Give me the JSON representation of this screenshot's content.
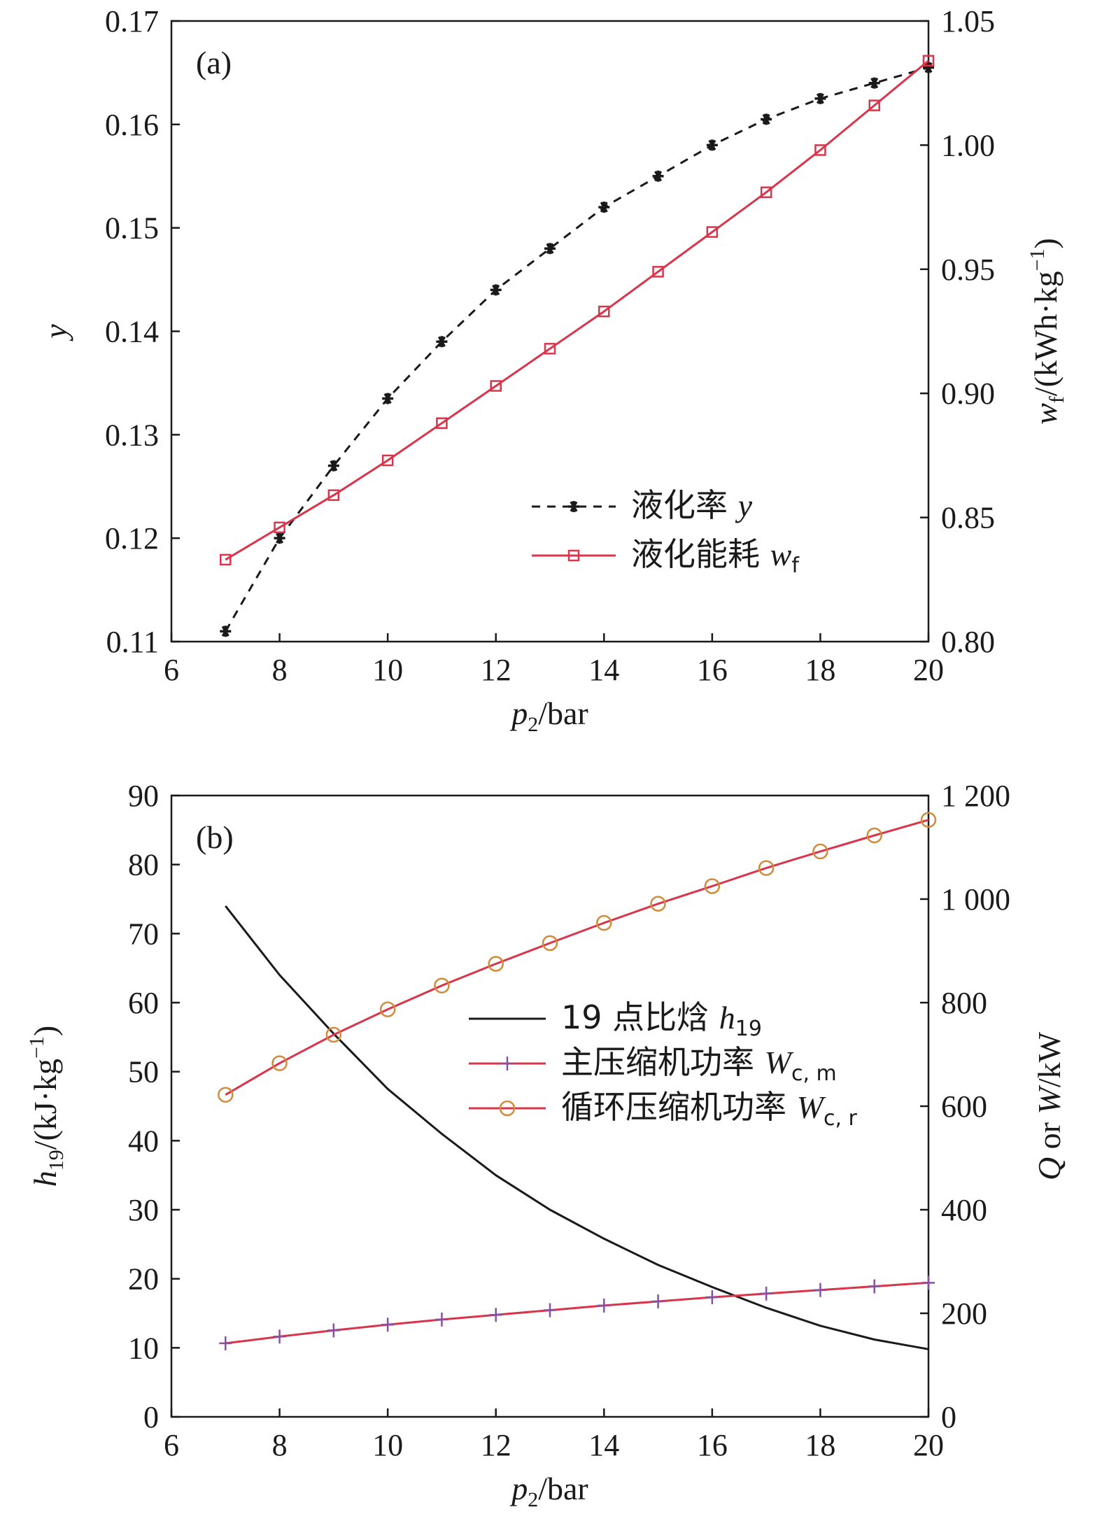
{
  "colors": {
    "axis": "#1a1a1a",
    "liquefaction": "#1a1a1a",
    "energy": "#d9344a",
    "h19": "#1a1a1a",
    "wcm_line": "#d9344a",
    "wcm_marker": "#8a4fa0",
    "wcr_line": "#d9344a",
    "wcr_marker": "#d08a3a"
  },
  "chart_data": [
    {
      "type": "line",
      "panel_label": "(a)",
      "xlabel": {
        "var": "p",
        "sub": "2",
        "unit": "/bar"
      },
      "ylabel_left": {
        "var": "y"
      },
      "ylabel_right": {
        "var": "w",
        "sub": "f",
        "unit": "/(kWh·kg",
        "sup": "−1",
        "close": ")"
      },
      "xlim": [
        6,
        20
      ],
      "xticks": [
        "6",
        "8",
        "10",
        "12",
        "14",
        "16",
        "18",
        "20"
      ],
      "ylim_left": [
        0.11,
        0.17
      ],
      "yticks_left": [
        "0.11",
        "0.12",
        "0.13",
        "0.14",
        "0.15",
        "0.16",
        "0.17"
      ],
      "ylim_right": [
        0.8,
        1.05
      ],
      "yticks_right": [
        "0.80",
        "0.85",
        "0.90",
        "0.95",
        "1.00",
        "1.05"
      ],
      "x": [
        7,
        8,
        9,
        10,
        11,
        12,
        13,
        14,
        15,
        16,
        17,
        18,
        19,
        20
      ],
      "legend_position": "lower-right",
      "series": [
        {
          "name": "液化率",
          "var": "y",
          "sub": "",
          "axis": "left",
          "style": "dashed",
          "marker": "asterisk",
          "values": [
            0.111,
            0.12,
            0.127,
            0.1335,
            0.139,
            0.144,
            0.148,
            0.152,
            0.155,
            0.158,
            0.1605,
            0.1625,
            0.164,
            0.1655
          ]
        },
        {
          "name": "液化能耗",
          "var": "w",
          "sub": "f",
          "axis": "right",
          "style": "solid",
          "marker": "square",
          "values": [
            0.833,
            0.846,
            0.859,
            0.873,
            0.888,
            0.903,
            0.918,
            0.933,
            0.949,
            0.965,
            0.981,
            0.998,
            1.016,
            1.034
          ]
        }
      ]
    },
    {
      "type": "line",
      "panel_label": "(b)",
      "xlabel": {
        "var": "p",
        "sub": "2",
        "unit": "/bar"
      },
      "ylabel_left": {
        "var": "h",
        "sub": "19",
        "unit": "/(kJ·kg",
        "sup": "−1",
        "close": ")"
      },
      "ylabel_right": {
        "var": "Q",
        "mid": " or ",
        "var2": "W",
        "unit": "/kW"
      },
      "xlim": [
        6,
        20
      ],
      "xticks": [
        "6",
        "8",
        "10",
        "12",
        "14",
        "16",
        "18",
        "20"
      ],
      "ylim_left": [
        0,
        90
      ],
      "yticks_left": [
        "0",
        "10",
        "20",
        "30",
        "40",
        "50",
        "60",
        "70",
        "80",
        "90"
      ],
      "ylim_right": [
        0,
        1200
      ],
      "yticks_right": [
        "0",
        "200",
        "400",
        "600",
        "800",
        "1 000",
        "1 200"
      ],
      "legend_position": "center",
      "series": [
        {
          "name": "19 点比焓",
          "var": "h",
          "sub": "19",
          "axis": "left",
          "style": "solid",
          "marker": "none",
          "x": [
            7,
            8,
            9,
            10,
            11,
            12,
            13,
            14,
            15,
            16,
            17,
            18,
            19,
            20
          ],
          "values": [
            74,
            64,
            55.5,
            47.5,
            41,
            35,
            30,
            25.8,
            22,
            18.8,
            15.8,
            13.2,
            11.2,
            9.8
          ]
        },
        {
          "name": "主压缩机功率",
          "var": "W",
          "sub": "c, m",
          "axis": "right",
          "style": "solid",
          "marker": "plus",
          "x": [
            7,
            8,
            9,
            10,
            11,
            12,
            13,
            14,
            15,
            16,
            17,
            18,
            19,
            20
          ],
          "values": [
            142,
            155,
            167,
            178,
            188,
            197,
            206,
            215,
            223,
            231,
            238,
            245,
            252,
            259
          ]
        },
        {
          "name": "循环压缩机功率",
          "var": "W",
          "sub": "c, r",
          "axis": "right",
          "style": "solid",
          "marker": "circle",
          "x": [
            7,
            8,
            9,
            10,
            11,
            12,
            13,
            14,
            15,
            16,
            17,
            18,
            19,
            20
          ],
          "values": [
            622,
            683,
            738,
            787,
            833,
            875,
            915,
            954,
            991,
            1025,
            1060,
            1092,
            1123,
            1153
          ]
        }
      ]
    }
  ]
}
